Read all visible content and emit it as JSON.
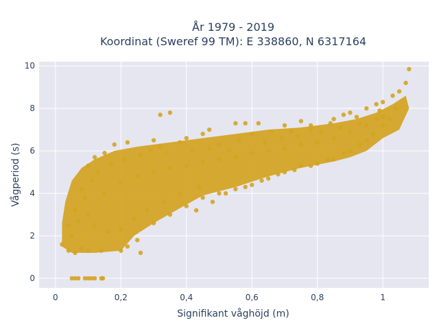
{
  "chart_data": {
    "type": "scatter",
    "title_lines": [
      "År 1979 - 2019",
      "Koordinat (Sweref 99 TM): E 338860, N 6317164"
    ],
    "xlabel": "Signifikant våghöjd (m)",
    "ylabel": "Vågperiod (s)",
    "xlim": [
      -0.05,
      1.14
    ],
    "ylim": [
      -0.45,
      10.2
    ],
    "x_ticks": [
      0,
      0.2,
      0.4,
      0.6,
      0.8,
      1
    ],
    "x_tick_labels": [
      "0",
      "0,2",
      "0,4",
      "0,6",
      "0,8",
      "1"
    ],
    "y_ticks": [
      0,
      2,
      4,
      6,
      8,
      10
    ],
    "y_tick_labels": [
      "0",
      "2",
      "4",
      "6",
      "8",
      "10"
    ],
    "grid": true,
    "colors": {
      "marker": "#d4a321",
      "plot_bg": "#e5e6f0",
      "grid": "#ffffff"
    },
    "series": [
      {
        "points": [
          [
            0.05,
            0
          ],
          [
            0.06,
            0
          ],
          [
            0.07,
            0
          ],
          [
            0.09,
            0
          ],
          [
            0.1,
            0
          ],
          [
            0.11,
            0
          ],
          [
            0.12,
            0
          ],
          [
            0.14,
            0
          ],
          [
            0.145,
            0
          ],
          [
            0.02,
            1.6
          ],
          [
            0.04,
            1.3
          ],
          [
            0.06,
            1.2
          ],
          [
            0.08,
            1.4
          ],
          [
            0.1,
            1.3
          ],
          [
            0.14,
            1.3
          ],
          [
            0.2,
            1.3
          ],
          [
            0.26,
            1.2
          ],
          [
            0.04,
            2.5
          ],
          [
            0.06,
            3.2
          ],
          [
            0.08,
            4.2
          ],
          [
            0.1,
            5.3
          ],
          [
            0.12,
            5.7
          ],
          [
            0.15,
            5.9
          ],
          [
            0.18,
            6.3
          ],
          [
            0.22,
            6.4
          ],
          [
            0.3,
            6.5
          ],
          [
            0.32,
            7.7
          ],
          [
            0.35,
            7.8
          ],
          [
            0.4,
            6.6
          ],
          [
            0.45,
            6.8
          ],
          [
            0.47,
            7.0
          ],
          [
            0.55,
            7.3
          ],
          [
            0.58,
            7.3
          ],
          [
            0.62,
            7.3
          ],
          [
            0.7,
            7.2
          ],
          [
            0.75,
            7.4
          ],
          [
            0.78,
            7.2
          ],
          [
            0.85,
            7.5
          ],
          [
            0.88,
            7.7
          ],
          [
            0.9,
            7.8
          ],
          [
            0.95,
            8.0
          ],
          [
            0.98,
            8.2
          ],
          [
            1.0,
            8.3
          ],
          [
            1.03,
            8.6
          ],
          [
            1.05,
            8.8
          ],
          [
            1.07,
            9.2
          ],
          [
            1.08,
            9.85
          ],
          [
            1.04,
            8.0
          ],
          [
            1.0,
            7.2
          ],
          [
            0.95,
            6.5
          ],
          [
            0.9,
            6.0
          ],
          [
            0.85,
            5.6
          ],
          [
            0.8,
            5.4
          ],
          [
            0.75,
            5.3
          ],
          [
            0.7,
            5.0
          ],
          [
            0.65,
            4.7
          ],
          [
            0.6,
            4.4
          ],
          [
            0.55,
            4.2
          ],
          [
            0.5,
            4.0
          ],
          [
            0.45,
            3.8
          ],
          [
            0.4,
            3.4
          ],
          [
            0.35,
            3.0
          ],
          [
            0.3,
            2.6
          ],
          [
            0.25,
            1.8
          ],
          [
            0.22,
            1.5
          ],
          [
            0.43,
            3.2
          ],
          [
            0.48,
            3.6
          ],
          [
            0.52,
            4.0
          ],
          [
            0.58,
            4.3
          ],
          [
            0.63,
            4.6
          ],
          [
            0.68,
            4.9
          ],
          [
            0.73,
            5.1
          ],
          [
            0.78,
            5.3
          ],
          [
            0.83,
            5.6
          ],
          [
            0.88,
            5.9
          ],
          [
            0.93,
            6.3
          ],
          [
            0.97,
            6.8
          ],
          [
            1.02,
            7.5
          ],
          [
            0.32,
            6.2
          ],
          [
            0.38,
            6.4
          ],
          [
            0.42,
            6.0
          ],
          [
            0.5,
            6.3
          ],
          [
            0.56,
            6.5
          ],
          [
            0.6,
            6.8
          ],
          [
            0.66,
            6.9
          ],
          [
            0.72,
            6.9
          ],
          [
            0.78,
            7.0
          ],
          [
            0.84,
            7.3
          ],
          [
            0.92,
            7.6
          ],
          [
            0.99,
            7.9
          ],
          [
            0.15,
            4.0
          ],
          [
            0.2,
            4.5
          ],
          [
            0.25,
            4.8
          ],
          [
            0.3,
            5.0
          ],
          [
            0.35,
            5.2
          ],
          [
            0.4,
            5.3
          ],
          [
            0.45,
            5.5
          ],
          [
            0.5,
            5.6
          ],
          [
            0.55,
            5.7
          ],
          [
            0.6,
            5.9
          ],
          [
            0.65,
            6.0
          ],
          [
            0.7,
            6.1
          ],
          [
            0.75,
            6.3
          ],
          [
            0.8,
            6.4
          ],
          [
            0.85,
            6.6
          ],
          [
            0.9,
            6.9
          ],
          [
            0.95,
            7.2
          ],
          [
            1.0,
            7.6
          ],
          [
            0.1,
            3.0
          ],
          [
            0.12,
            2.5
          ],
          [
            0.16,
            2.2
          ],
          [
            0.2,
            2.3
          ],
          [
            0.24,
            2.8
          ],
          [
            0.28,
            3.2
          ],
          [
            0.33,
            3.6
          ],
          [
            0.38,
            4.0
          ],
          [
            0.44,
            4.3
          ],
          [
            0.05,
            2.0
          ],
          [
            0.07,
            2.7
          ],
          [
            0.09,
            3.8
          ],
          [
            0.11,
            4.6
          ],
          [
            0.13,
            5.0
          ],
          [
            0.17,
            5.4
          ],
          [
            0.21,
            5.6
          ],
          [
            0.26,
            5.8
          ],
          [
            0.29,
            6.0
          ],
          [
            0.34,
            5.9
          ],
          [
            0.47,
            6.1
          ],
          [
            0.53,
            6.0
          ],
          [
            0.64,
            6.4
          ],
          [
            0.69,
            6.6
          ],
          [
            0.74,
            6.7
          ],
          [
            0.81,
            6.9
          ],
          [
            0.87,
            7.1
          ],
          [
            0.93,
            7.3
          ],
          [
            0.98,
            7.5
          ]
        ]
      }
    ]
  }
}
